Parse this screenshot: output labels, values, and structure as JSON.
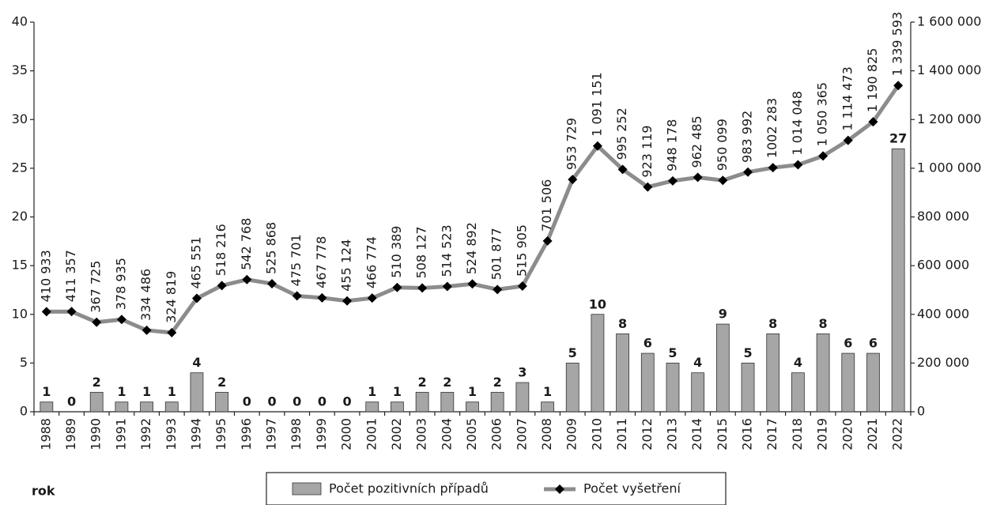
{
  "chart_data": {
    "type": "bar",
    "x_label": "rok",
    "categories": [
      "1988",
      "1989",
      "1990",
      "1991",
      "1992",
      "1993",
      "1994",
      "1995",
      "1996",
      "1997",
      "1998",
      "1999",
      "2000",
      "2001",
      "2002",
      "2003",
      "2004",
      "2005",
      "2006",
      "2007",
      "2008",
      "2009",
      "2010",
      "2011",
      "2012",
      "2013",
      "2014",
      "2015",
      "2016",
      "2017",
      "2018",
      "2019",
      "2020",
      "2021",
      "2022"
    ],
    "series": [
      {
        "name": "Počet pozitivních případů",
        "type": "bar",
        "axis": "y",
        "color": "#a6a6a6",
        "values": [
          1,
          0,
          2,
          1,
          1,
          1,
          4,
          2,
          0,
          0,
          0,
          0,
          0,
          1,
          1,
          2,
          2,
          1,
          2,
          3,
          1,
          5,
          10,
          8,
          6,
          5,
          4,
          9,
          5,
          8,
          4,
          8,
          6,
          6,
          27
        ]
      },
      {
        "name": "Počet vyšetření",
        "type": "line",
        "axis": "y2",
        "color": "#8c8c8c",
        "marker_color": "#000000",
        "values": [
          410933,
          411357,
          367725,
          378935,
          334486,
          324819,
          465551,
          518216,
          542768,
          525868,
          475701,
          467778,
          455124,
          466774,
          510389,
          508127,
          514523,
          524892,
          501877,
          515905,
          701506,
          953729,
          1091151,
          995252,
          923119,
          948178,
          962485,
          950099,
          983992,
          1002283,
          1014048,
          1050365,
          1114473,
          1190825,
          1339593
        ],
        "value_labels": [
          "410 933",
          "411 357",
          "367 725",
          "378 935",
          "334 486",
          "324 819",
          "465 551",
          "518 216",
          "542 768",
          "525 868",
          "475 701",
          "467 778",
          "455 124",
          "466 774",
          "510 389",
          "508 127",
          "514 523",
          "524 892",
          "501 877",
          "515 905",
          "701 506",
          "953 729",
          "1 091 151",
          "995 252",
          "923 119",
          "948 178",
          "962 485",
          "950 099",
          "983 992",
          "1002 283",
          "1 014 048",
          "1 050 365",
          "1 114 473",
          "1 190 825",
          "1 339 593"
        ]
      }
    ],
    "ylim": [
      0,
      40
    ],
    "yticks": [
      0,
      5,
      10,
      15,
      20,
      25,
      30,
      35,
      40
    ],
    "y2lim": [
      0,
      1600000
    ],
    "y2ticks": [
      0,
      {
        "value": 200000,
        "label": "200 000"
      },
      {
        "value": 400000,
        "label": "400 000"
      },
      {
        "value": 600000,
        "label": "600 000"
      },
      {
        "value": 800000,
        "label": "800 000"
      },
      {
        "value": 1000000,
        "label": "1 000 000"
      },
      {
        "value": 1200000,
        "label": "1 200 000"
      },
      {
        "value": 1400000,
        "label": "1 400 000"
      },
      {
        "value": 1600000,
        "label": "1 600 000"
      }
    ],
    "legend": "bottom",
    "grid": false
  }
}
